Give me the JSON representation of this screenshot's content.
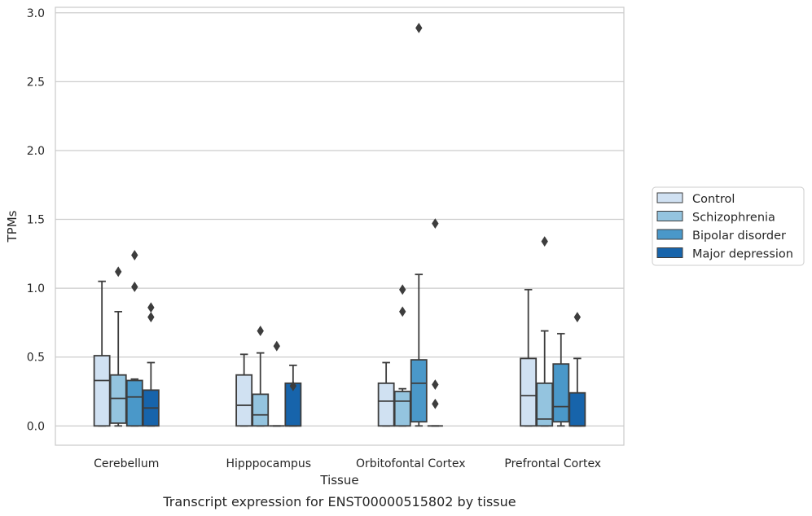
{
  "chart_data": {
    "type": "box",
    "title": "",
    "caption": "Transcript expression for ENST00000515802 by tissue",
    "xlabel": "Tissue",
    "ylabel": "TPMs",
    "ylim": [
      -0.14,
      3.04
    ],
    "yticks": [
      0.0,
      0.5,
      1.0,
      1.5,
      2.0,
      2.5,
      3.0
    ],
    "ytick_labels": [
      "0.0",
      "0.5",
      "1.0",
      "1.5",
      "2.0",
      "2.5",
      "3.0"
    ],
    "grid": "horizontal",
    "legend_position": "right",
    "categories": [
      "Cerebellum",
      "Hipppocampus",
      "Orbitofontal Cortex",
      "Prefrontal Cortex"
    ],
    "series": [
      {
        "name": "Control",
        "color": "#d0e1f2",
        "boxes": [
          {
            "whislo": 0.0,
            "q1": 0.0,
            "med": 0.33,
            "q3": 0.51,
            "whishi": 1.05,
            "fliers": []
          },
          {
            "whislo": 0.0,
            "q1": 0.0,
            "med": 0.15,
            "q3": 0.37,
            "whishi": 0.52,
            "fliers": []
          },
          {
            "whislo": 0.0,
            "q1": 0.0,
            "med": 0.18,
            "q3": 0.31,
            "whishi": 0.46,
            "fliers": []
          },
          {
            "whislo": 0.0,
            "q1": 0.0,
            "med": 0.22,
            "q3": 0.49,
            "whishi": 0.99,
            "fliers": []
          }
        ]
      },
      {
        "name": "Schizophrenia",
        "color": "#94c4df",
        "boxes": [
          {
            "whislo": 0.0,
            "q1": 0.02,
            "med": 0.2,
            "q3": 0.37,
            "whishi": 0.83,
            "fliers": [
              1.12
            ]
          },
          {
            "whislo": 0.0,
            "q1": 0.0,
            "med": 0.08,
            "q3": 0.23,
            "whishi": 0.53,
            "fliers": [
              0.69
            ]
          },
          {
            "whislo": 0.0,
            "q1": 0.0,
            "med": 0.18,
            "q3": 0.25,
            "whishi": 0.27,
            "fliers": [
              0.83,
              0.99
            ]
          },
          {
            "whislo": 0.0,
            "q1": 0.0,
            "med": 0.05,
            "q3": 0.31,
            "whishi": 0.69,
            "fliers": [
              1.34
            ]
          }
        ]
      },
      {
        "name": "Bipolar disorder",
        "color": "#4a98c9",
        "boxes": [
          {
            "whislo": 0.0,
            "q1": 0.0,
            "med": 0.21,
            "q3": 0.33,
            "whishi": 0.34,
            "fliers": [
              1.01,
              1.24
            ]
          },
          {
            "whislo": 0.0,
            "q1": 0.0,
            "med": 0.0,
            "q3": 0.0,
            "whishi": 0.0,
            "fliers": [
              0.58
            ]
          },
          {
            "whislo": 0.0,
            "q1": 0.03,
            "med": 0.31,
            "q3": 0.48,
            "whishi": 1.1,
            "fliers": [
              2.89
            ]
          },
          {
            "whislo": 0.0,
            "q1": 0.03,
            "med": 0.14,
            "q3": 0.45,
            "whishi": 0.67,
            "fliers": []
          }
        ]
      },
      {
        "name": "Major depression",
        "color": "#1764ab",
        "boxes": [
          {
            "whislo": 0.0,
            "q1": 0.0,
            "med": 0.13,
            "q3": 0.26,
            "whishi": 0.46,
            "fliers": [
              0.79,
              0.86
            ]
          },
          {
            "whislo": 0.0,
            "q1": 0.0,
            "med": 0.0,
            "q3": 0.31,
            "whishi": 0.44,
            "fliers": [
              0.29
            ]
          },
          {
            "whislo": 0.0,
            "q1": 0.0,
            "med": 0.0,
            "q3": 0.0,
            "whishi": 0.0,
            "fliers": [
              0.16,
              0.3,
              1.47
            ]
          },
          {
            "whislo": 0.0,
            "q1": 0.0,
            "med": 0.0,
            "q3": 0.24,
            "whishi": 0.49,
            "fliers": [
              0.79
            ]
          }
        ]
      }
    ]
  }
}
